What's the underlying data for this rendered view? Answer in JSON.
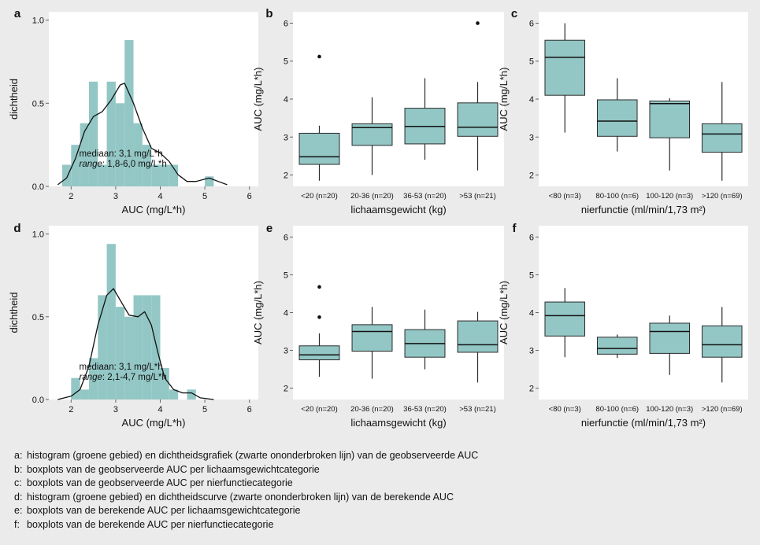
{
  "colors": {
    "fill": "#93c7c5",
    "stroke": "#2a2a2a",
    "panel": "#ffffff",
    "background": "#ebebeb"
  },
  "chart_data": [
    {
      "panel": "a",
      "type": "bar",
      "subtype": "histogram-with-density",
      "xlabel": "AUC (mg/L*h)",
      "ylabel": "dichtheid",
      "xlim": [
        1.5,
        6.2
      ],
      "ylim": [
        0,
        1.05
      ],
      "xticks": [
        "2",
        "3",
        "4",
        "5",
        "6"
      ],
      "yticks": [
        "0.0",
        "0.5",
        "1.0"
      ],
      "bin_width": 0.2,
      "bins": [
        {
          "x0": 1.8,
          "height": 0.13
        },
        {
          "x0": 2.0,
          "height": 0.25
        },
        {
          "x0": 2.2,
          "height": 0.38
        },
        {
          "x0": 2.4,
          "height": 0.63
        },
        {
          "x0": 2.6,
          "height": 0.13
        },
        {
          "x0": 2.8,
          "height": 0.63
        },
        {
          "x0": 3.0,
          "height": 0.5
        },
        {
          "x0": 3.2,
          "height": 0.88
        },
        {
          "x0": 3.4,
          "height": 0.38
        },
        {
          "x0": 3.6,
          "height": 0.25
        },
        {
          "x0": 3.8,
          "height": 0.13
        },
        {
          "x0": 4.0,
          "height": 0.13
        },
        {
          "x0": 4.2,
          "height": 0.13
        },
        {
          "x0": 5.0,
          "height": 0.06
        }
      ],
      "density": [
        [
          1.7,
          0.01
        ],
        [
          1.9,
          0.05
        ],
        [
          2.1,
          0.17
        ],
        [
          2.3,
          0.33
        ],
        [
          2.5,
          0.42
        ],
        [
          2.7,
          0.45
        ],
        [
          2.9,
          0.52
        ],
        [
          3.1,
          0.61
        ],
        [
          3.2,
          0.62
        ],
        [
          3.4,
          0.5
        ],
        [
          3.6,
          0.35
        ],
        [
          3.8,
          0.23
        ],
        [
          4.0,
          0.2
        ],
        [
          4.2,
          0.15
        ],
        [
          4.4,
          0.07
        ],
        [
          4.6,
          0.03
        ],
        [
          4.8,
          0.03
        ],
        [
          5.1,
          0.05
        ],
        [
          5.3,
          0.03
        ],
        [
          5.5,
          0.01
        ]
      ],
      "annotation": {
        "median": "mediaan: 3,1 mg/L*h",
        "range_label": "range",
        "range_value": ": 1,8-6,0 mg/L*h"
      }
    },
    {
      "panel": "b",
      "type": "box",
      "xlabel": "lichaamsgewicht (kg)",
      "ylabel": "AUC (mg/L*h)",
      "ylim": [
        1.7,
        6.3
      ],
      "yticks": [
        "2",
        "3",
        "4",
        "5",
        "6"
      ],
      "categories": [
        "<20 (n=20)",
        "20-36 (n=20)",
        "36-53 (n=20)",
        ">53 (n=21)"
      ],
      "boxes": [
        {
          "whislo": 1.85,
          "q1": 2.28,
          "med": 2.48,
          "q3": 3.1,
          "whishi": 3.3,
          "fliers": [
            5.12
          ]
        },
        {
          "whislo": 2.0,
          "q1": 2.78,
          "med": 3.25,
          "q3": 3.35,
          "whishi": 4.05,
          "fliers": []
        },
        {
          "whislo": 2.4,
          "q1": 2.82,
          "med": 3.28,
          "q3": 3.76,
          "whishi": 4.55,
          "fliers": []
        },
        {
          "whislo": 2.12,
          "q1": 3.02,
          "med": 3.26,
          "q3": 3.9,
          "whishi": 4.45,
          "fliers": [
            6.0
          ]
        }
      ]
    },
    {
      "panel": "c",
      "type": "box",
      "xlabel": "nierfunctie (ml/min/1,73 m²)",
      "ylabel": "AUC (mg/L*h)",
      "ylim": [
        1.7,
        6.3
      ],
      "yticks": [
        "2",
        "3",
        "4",
        "5",
        "6"
      ],
      "categories": [
        "<80 (n=3)",
        "80-100 (n=6)",
        "100-120 (n=3)",
        ">120 (n=69)"
      ],
      "boxes": [
        {
          "whislo": 3.12,
          "q1": 4.1,
          "med": 5.1,
          "q3": 5.55,
          "whishi": 6.0,
          "fliers": []
        },
        {
          "whislo": 2.62,
          "q1": 3.02,
          "med": 3.42,
          "q3": 3.98,
          "whishi": 4.55,
          "fliers": []
        },
        {
          "whislo": 2.12,
          "q1": 2.98,
          "med": 3.88,
          "q3": 3.95,
          "whishi": 4.02,
          "fliers": []
        },
        {
          "whislo": 1.85,
          "q1": 2.6,
          "med": 3.08,
          "q3": 3.35,
          "whishi": 4.45,
          "fliers": []
        }
      ]
    },
    {
      "panel": "d",
      "type": "bar",
      "subtype": "histogram-with-density",
      "xlabel": "AUC (mg/L*h)",
      "ylabel": "dichtheid",
      "xlim": [
        1.5,
        6.2
      ],
      "ylim": [
        0,
        1.05
      ],
      "xticks": [
        "2",
        "3",
        "4",
        "5",
        "6"
      ],
      "yticks": [
        "0.0",
        "0.5",
        "1.0"
      ],
      "bin_width": 0.2,
      "bins": [
        {
          "x0": 2.0,
          "height": 0.13
        },
        {
          "x0": 2.2,
          "height": 0.06
        },
        {
          "x0": 2.4,
          "height": 0.25
        },
        {
          "x0": 2.6,
          "height": 0.63
        },
        {
          "x0": 2.8,
          "height": 0.94
        },
        {
          "x0": 3.0,
          "height": 0.56
        },
        {
          "x0": 3.2,
          "height": 0.5
        },
        {
          "x0": 3.4,
          "height": 0.63
        },
        {
          "x0": 3.6,
          "height": 0.63
        },
        {
          "x0": 3.8,
          "height": 0.63
        },
        {
          "x0": 4.0,
          "height": 0.19
        },
        {
          "x0": 4.2,
          "height": 0.06
        },
        {
          "x0": 4.6,
          "height": 0.06
        }
      ],
      "density": [
        [
          1.7,
          0.0
        ],
        [
          2.0,
          0.02
        ],
        [
          2.2,
          0.06
        ],
        [
          2.4,
          0.2
        ],
        [
          2.6,
          0.45
        ],
        [
          2.8,
          0.63
        ],
        [
          2.95,
          0.67
        ],
        [
          3.1,
          0.6
        ],
        [
          3.3,
          0.51
        ],
        [
          3.5,
          0.5
        ],
        [
          3.65,
          0.53
        ],
        [
          3.8,
          0.45
        ],
        [
          3.95,
          0.28
        ],
        [
          4.1,
          0.13
        ],
        [
          4.3,
          0.06
        ],
        [
          4.5,
          0.04
        ],
        [
          4.7,
          0.04
        ],
        [
          4.9,
          0.01
        ],
        [
          5.2,
          0.0
        ]
      ],
      "annotation": {
        "median": "mediaan: 3,1 mg/L*h",
        "range_label": "range",
        "range_value": ": 2,1-4,7 mg/L*h"
      }
    },
    {
      "panel": "e",
      "type": "box",
      "xlabel": "lichaamsgewicht (kg)",
      "ylabel": "AUC (mg/L*h)",
      "ylim": [
        1.7,
        6.3
      ],
      "yticks": [
        "2",
        "3",
        "4",
        "5",
        "6"
      ],
      "categories": [
        "<20 (n=20)",
        "20-36 (n=20)",
        "36-53 (n=20)",
        ">53 (n=21)"
      ],
      "boxes": [
        {
          "whislo": 2.3,
          "q1": 2.75,
          "med": 2.88,
          "q3": 3.12,
          "whishi": 3.45,
          "fliers": [
            4.68,
            3.88
          ]
        },
        {
          "whislo": 2.25,
          "q1": 2.98,
          "med": 3.5,
          "q3": 3.68,
          "whishi": 4.15,
          "fliers": []
        },
        {
          "whislo": 2.5,
          "q1": 2.82,
          "med": 3.18,
          "q3": 3.55,
          "whishi": 4.08,
          "fliers": []
        },
        {
          "whislo": 2.15,
          "q1": 2.95,
          "med": 3.15,
          "q3": 3.78,
          "whishi": 4.02,
          "fliers": []
        }
      ]
    },
    {
      "panel": "f",
      "type": "box",
      "xlabel": "nierfunctie (ml/min/1,73 m²)",
      "ylabel": "AUC (mg/L*h)",
      "ylim": [
        1.7,
        6.3
      ],
      "yticks": [
        "2",
        "3",
        "4",
        "5",
        "6"
      ],
      "categories": [
        "<80 (n=3)",
        "80-100 (n=6)",
        "100-120 (n=3)",
        ">120 (n=69)"
      ],
      "boxes": [
        {
          "whislo": 2.82,
          "q1": 3.38,
          "med": 3.92,
          "q3": 4.28,
          "whishi": 4.65,
          "fliers": []
        },
        {
          "whislo": 2.8,
          "q1": 2.9,
          "med": 3.05,
          "q3": 3.35,
          "whishi": 3.42,
          "fliers": []
        },
        {
          "whislo": 2.35,
          "q1": 2.92,
          "med": 3.5,
          "q3": 3.72,
          "whishi": 3.92,
          "fliers": []
        },
        {
          "whislo": 2.15,
          "q1": 2.82,
          "med": 3.15,
          "q3": 3.65,
          "whishi": 4.15,
          "fliers": []
        }
      ]
    }
  ],
  "caption": [
    {
      "key": "a:",
      "text": "histogram (groene gebied) en dichtheidsgrafiek (zwarte ononderbroken lijn) van de geobserveerde AUC"
    },
    {
      "key": "b:",
      "text": "boxplots van de geobserveerde AUC per lichaamsgewichtcategorie"
    },
    {
      "key": "c:",
      "text": "boxplots van de geobserveerde AUC per nierfunctiecategorie"
    },
    {
      "key": "d:",
      "text": "histogram (groene gebied) en dichtheidscurve (zwarte ononderbroken lijn) van de berekende AUC"
    },
    {
      "key": "e:",
      "text": "boxplots van de berekende AUC per lichaamsgewichtcategorie"
    },
    {
      "key": "f:",
      "text": "boxplots van de berekende AUC per nierfunctiecategorie"
    }
  ]
}
